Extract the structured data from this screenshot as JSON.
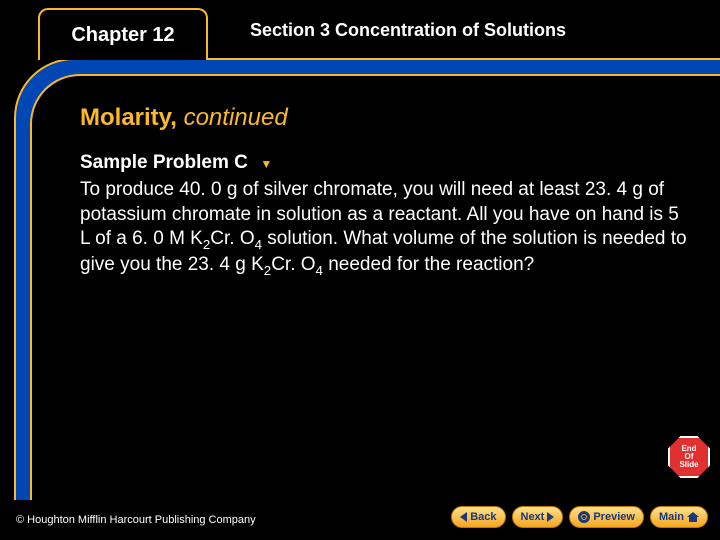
{
  "colors": {
    "background": "#000000",
    "accent": "#fbb829",
    "panel": "#0047b3",
    "text_light": "#ffffff",
    "nav_button_top": "#fde08a",
    "nav_button_bottom": "#f5a623",
    "nav_text": "#1a3a7a",
    "stop_sign": "#e03030"
  },
  "header": {
    "chapter_label": "Chapter 12",
    "section_label": "Section 3  Concentration of Solutions"
  },
  "slide": {
    "title_main": "Molarity,",
    "title_suffix": " continued",
    "sample_heading": "Sample Problem C",
    "body_html": "To produce 40. 0 g of silver chromate, you will need at least 23. 4 g of potassium chromate in solution as a reactant. All you have on hand is 5 L of a 6. 0 M K<span class='sub'>2</span>Cr. O<span class='sub'>4</span> solution. What volume of the solution is needed to give you the 23. 4 g K<span class='sub'>2</span>Cr. O<span class='sub'>4</span> needed for the reaction?"
  },
  "end_badge": {
    "line1": "End",
    "line2": "Of",
    "line3": "Slide"
  },
  "nav": {
    "back": "Back",
    "next": "Next",
    "preview": "Preview",
    "main": "Main"
  },
  "footer": {
    "copyright": "© Houghton Mifflin Harcourt Publishing Company"
  }
}
